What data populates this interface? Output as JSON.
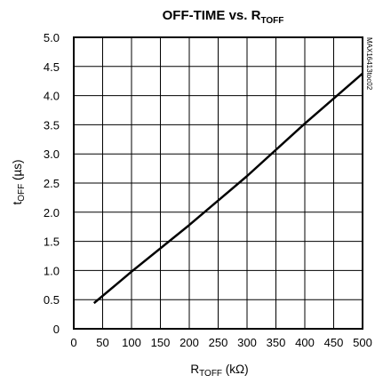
{
  "chart_data": {
    "type": "line",
    "title": {
      "main": "OFF-TIME vs. R",
      "sub": "TOFF"
    },
    "xlabel": {
      "main": "R",
      "sub": "TOFF",
      "unit": " (kΩ)"
    },
    "ylabel": {
      "main": "t",
      "sub": "OFF",
      "unit": " (µs)"
    },
    "xlim": [
      0,
      500
    ],
    "ylim": [
      0,
      5.0
    ],
    "x_ticks": [
      0,
      50,
      100,
      150,
      200,
      250,
      300,
      350,
      400,
      450,
      500
    ],
    "x_tick_labels": [
      "0",
      "50",
      "100",
      "150",
      "200",
      "250",
      "300",
      "350",
      "400",
      "450",
      "500"
    ],
    "y_ticks": [
      0,
      0.5,
      1.0,
      1.5,
      2.0,
      2.5,
      3.0,
      3.5,
      4.0,
      4.5,
      5.0
    ],
    "y_tick_labels": [
      "0",
      "0.5",
      "1.0",
      "1.5",
      "2.0",
      "2.5",
      "3.0",
      "3.5",
      "4.0",
      "4.5",
      "5.0"
    ],
    "grid": true,
    "side_code": "MAX16413toc02",
    "series": [
      {
        "x": [
          35,
          100,
          200,
          300,
          400,
          500
        ],
        "y": [
          0.44,
          0.98,
          1.78,
          2.62,
          3.52,
          4.38
        ]
      }
    ]
  }
}
